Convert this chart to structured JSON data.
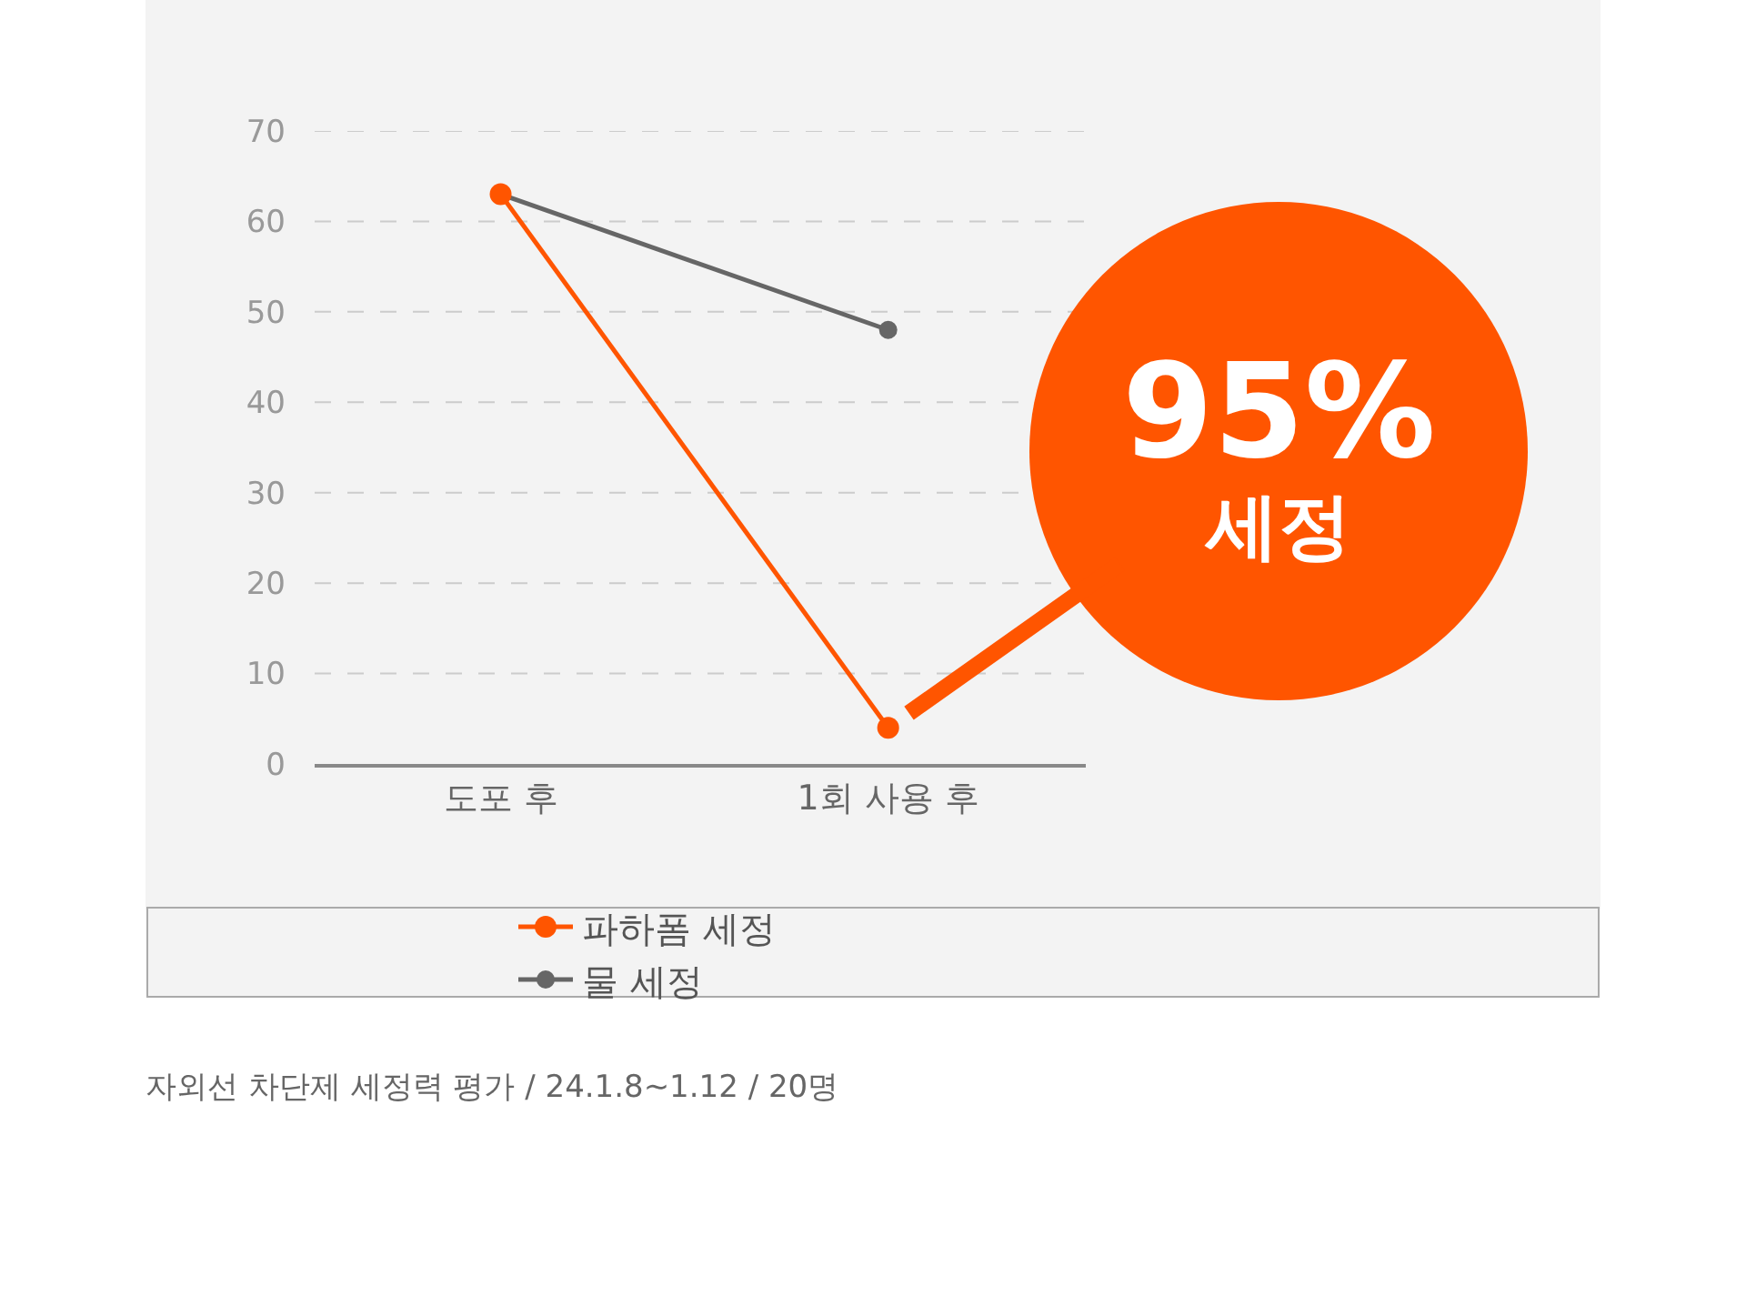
{
  "chart_data": {
    "type": "line",
    "categories": [
      "도포 후",
      "1회 사용 후"
    ],
    "series": [
      {
        "name": "파하폼 세정",
        "color": "#ff5500",
        "values": [
          63,
          4
        ]
      },
      {
        "name": "물 세정",
        "color": "#666666",
        "values": [
          63,
          48
        ]
      }
    ],
    "ylim": [
      0,
      70
    ],
    "yticks": [
      0,
      10,
      20,
      30,
      40,
      50,
      60,
      70
    ],
    "grid": "y",
    "legend": "bottom",
    "marker": "circle",
    "line_style": "solid",
    "annotations": [
      {
        "text": "95%\n세정",
        "x": "1회 사용 후",
        "y": 4
      },
      "자외선 차단제 세정력 평가 / 24.1.8~1.12 / 20명"
    ]
  }
}
